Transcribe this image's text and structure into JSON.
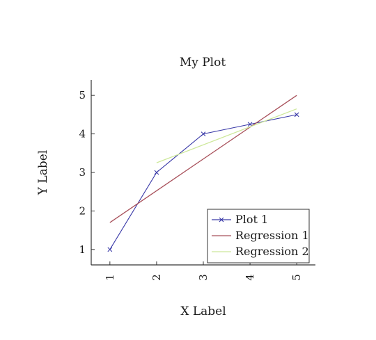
{
  "chart_data": {
    "type": "line",
    "title": "My Plot",
    "xlabel": "X Label",
    "ylabel": "Y Label",
    "xlim": [
      0.6,
      5.4
    ],
    "ylim": [
      0.6,
      5.4
    ],
    "xticks": [
      "1",
      "2",
      "3",
      "4",
      "5"
    ],
    "yticks": [
      "1",
      "2",
      "3",
      "4",
      "5"
    ],
    "grid": false,
    "legend_position": "bottom-right",
    "series": [
      {
        "name": "Plot 1",
        "color": "#3a3aa8",
        "marker": "x",
        "x": [
          1,
          2,
          3,
          4,
          5
        ],
        "y": [
          1,
          3,
          4,
          4.25,
          4.5
        ]
      },
      {
        "name": "Regression 1",
        "color": "#a8505a",
        "marker": "none",
        "x": [
          1,
          5
        ],
        "y": [
          1.7,
          5.0
        ]
      },
      {
        "name": "Regression 2",
        "color": "#cde89a",
        "marker": "none",
        "x": [
          2,
          5
        ],
        "y": [
          3.25,
          4.65
        ]
      }
    ]
  }
}
